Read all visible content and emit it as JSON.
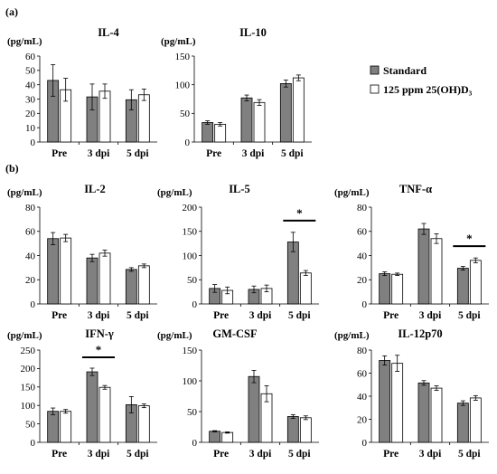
{
  "sections": [
    "(a)",
    "(b)"
  ],
  "legend": [
    {
      "label": "Standard",
      "color": "#808080"
    },
    {
      "label": "125 ppm 25(OH)D₃",
      "color": "#ffffff"
    }
  ],
  "chart_data": [
    {
      "type": "bar",
      "title": "IL-4",
      "ylabel": "(pg/mL)",
      "ylim": [
        0,
        60
      ],
      "yticks": [
        0,
        10,
        20,
        30,
        40,
        50,
        60
      ],
      "categories": [
        "Pre",
        "3 dpi",
        "5 dpi"
      ],
      "series": [
        {
          "name": "Standard",
          "values": [
            43,
            31.5,
            29.5
          ],
          "errors": [
            11,
            9,
            7
          ]
        },
        {
          "name": "125 ppm 25(OH)D₃",
          "values": [
            36.5,
            35.5,
            33
          ],
          "errors": [
            8,
            5,
            4
          ]
        }
      ],
      "significance": []
    },
    {
      "type": "bar",
      "title": "IL-10",
      "ylabel": "(pg/mL)",
      "ylim": [
        0,
        150
      ],
      "yticks": [
        0,
        50,
        100,
        150
      ],
      "categories": [
        "Pre",
        "3 dpi",
        "5 dpi"
      ],
      "series": [
        {
          "name": "Standard",
          "values": [
            34,
            77,
            102
          ],
          "errors": [
            3,
            5,
            6
          ]
        },
        {
          "name": "125 ppm 25(OH)D₃",
          "values": [
            31,
            69,
            112
          ],
          "errors": [
            3,
            5,
            5
          ]
        }
      ],
      "significance": []
    },
    {
      "type": "bar",
      "title": "IL-2",
      "ylabel": "(pg/mL)",
      "ylim": [
        0,
        80
      ],
      "yticks": [
        0,
        20,
        40,
        60,
        80
      ],
      "categories": [
        "Pre",
        "3 dpi",
        "5 dpi"
      ],
      "series": [
        {
          "name": "Standard",
          "values": [
            54,
            38,
            28.5
          ],
          "errors": [
            5,
            3,
            1.5
          ]
        },
        {
          "name": "125 ppm 25(OH)D₃",
          "values": [
            54.5,
            42,
            31.5
          ],
          "errors": [
            3,
            2.5,
            1.5
          ]
        }
      ],
      "significance": []
    },
    {
      "type": "bar",
      "title": "IL-5",
      "ylabel": "(pg/mL)",
      "ylim": [
        0,
        200
      ],
      "yticks": [
        0,
        50,
        100,
        150,
        200
      ],
      "categories": [
        "Pre",
        "3 dpi",
        "5 dpi"
      ],
      "series": [
        {
          "name": "Standard",
          "values": [
            32,
            30,
            128
          ],
          "errors": [
            8,
            7,
            20
          ]
        },
        {
          "name": "125 ppm 25(OH)D₃",
          "values": [
            28,
            32,
            64
          ],
          "errors": [
            7,
            7,
            5
          ]
        }
      ],
      "significance": [
        {
          "category": 2,
          "label": "*"
        }
      ]
    },
    {
      "type": "bar",
      "title": "TNF-α",
      "ylabel": "(pg/mL)",
      "ylim": [
        0,
        80
      ],
      "yticks": [
        0,
        20,
        40,
        60,
        80
      ],
      "categories": [
        "Pre",
        "3 dpi",
        "5 dpi"
      ],
      "series": [
        {
          "name": "Standard",
          "values": [
            25,
            62,
            29.5
          ],
          "errors": [
            1.5,
            4.5,
            1.5
          ]
        },
        {
          "name": "125 ppm 25(OH)D₃",
          "values": [
            24.5,
            54,
            36
          ],
          "errors": [
            1,
            4,
            2
          ]
        }
      ],
      "significance": [
        {
          "category": 2,
          "label": "*"
        }
      ]
    },
    {
      "type": "bar",
      "title": "IFN-γ",
      "ylabel": "(pg/mL)",
      "ylim": [
        0,
        250
      ],
      "yticks": [
        0,
        50,
        100,
        150,
        200,
        250
      ],
      "categories": [
        "Pre",
        "3 dpi",
        "5 dpi"
      ],
      "series": [
        {
          "name": "Standard",
          "values": [
            84,
            191,
            102
          ],
          "errors": [
            9,
            10,
            22
          ]
        },
        {
          "name": "125 ppm 25(OH)D₃",
          "values": [
            84,
            149,
            99
          ],
          "errors": [
            5,
            5,
            5
          ]
        }
      ],
      "significance": [
        {
          "category": 1,
          "label": "*"
        }
      ]
    },
    {
      "type": "bar",
      "title": "GM-CSF",
      "ylabel": "(pg/mL)",
      "ylim": [
        0,
        150
      ],
      "yticks": [
        0,
        50,
        100,
        150
      ],
      "categories": [
        "Pre",
        "3 dpi",
        "5 dpi"
      ],
      "series": [
        {
          "name": "Standard",
          "values": [
            18,
            107,
            42
          ],
          "errors": [
            1,
            10,
            3
          ]
        },
        {
          "name": "125 ppm 25(OH)D₃",
          "values": [
            16,
            79,
            40
          ],
          "errors": [
            1,
            13,
            3
          ]
        }
      ],
      "significance": []
    },
    {
      "type": "bar",
      "title": "IL-12p70",
      "ylabel": "(pg/mL)",
      "ylim": [
        0,
        80
      ],
      "yticks": [
        0,
        20,
        40,
        60,
        80
      ],
      "categories": [
        "Pre",
        "3 dpi",
        "5 dpi"
      ],
      "series": [
        {
          "name": "Standard",
          "values": [
            71,
            51.5,
            34
          ],
          "errors": [
            4,
            2,
            2
          ]
        },
        {
          "name": "125 ppm 25(OH)D₃",
          "values": [
            68.5,
            47,
            38.5
          ],
          "errors": [
            7,
            2,
            2
          ]
        }
      ],
      "significance": []
    }
  ]
}
